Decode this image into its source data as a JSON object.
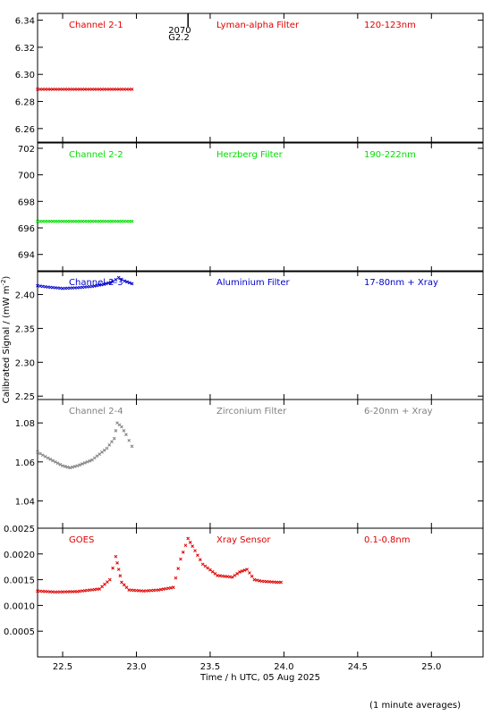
{
  "chart_data": {
    "type": "scatter",
    "ylabel": "Calibrated Signal / (mW m",
    "ylabel_sup": "-2",
    "ylabel_end": ")",
    "xlabel": "Time / h UTC, 05 Aug 2025",
    "note": "(1 minute averages)",
    "xlim": [
      22.33,
      25.35
    ],
    "xticks": [
      "22.5",
      "23.0",
      "23.5",
      "24.0",
      "24.5",
      "25.0"
    ],
    "xtick_values": [
      22.5,
      23.0,
      23.5,
      24.0,
      24.5,
      25.0
    ],
    "grid": false,
    "marker_annotation": {
      "x": 23.35,
      "lines": [
        "2070",
        "G2.2"
      ]
    },
    "panels": [
      {
        "channel": "Channel 2-1",
        "filter": "Lyman-alpha Filter",
        "band": "120-123nm",
        "color": "#e00000",
        "ylim": [
          6.25,
          6.345
        ],
        "yticks": [
          "6.26",
          "6.28",
          "6.30",
          "6.32",
          "6.34"
        ],
        "ytick_values": [
          6.26,
          6.28,
          6.3,
          6.32,
          6.34
        ],
        "x": [
          22.33,
          22.4,
          22.5,
          22.6,
          22.7,
          22.8,
          22.9,
          22.97
        ],
        "y": [
          6.289,
          6.289,
          6.289,
          6.289,
          6.289,
          6.289,
          6.289,
          6.289
        ]
      },
      {
        "channel": "Channel 2-2",
        "filter": "Herzberg Filter",
        "band": "190-222nm",
        "color": "#00dd00",
        "ylim": [
          692.7,
          702.4
        ],
        "yticks": [
          "694",
          "696",
          "698",
          "700",
          "702"
        ],
        "ytick_values": [
          694,
          696,
          698,
          700,
          702
        ],
        "x": [
          22.33,
          22.4,
          22.5,
          22.6,
          22.7,
          22.8,
          22.9,
          22.97
        ],
        "y": [
          696.5,
          696.5,
          696.5,
          696.5,
          696.5,
          696.5,
          696.5,
          696.5
        ]
      },
      {
        "channel": "Channel 2-3",
        "filter": "Aluminium Filter",
        "band": "17-80nm + Xray",
        "color": "#0000cc",
        "ylim": [
          2.245,
          2.435
        ],
        "yticks": [
          "2.25",
          "2.30",
          "2.35",
          "2.40"
        ],
        "ytick_values": [
          2.25,
          2.3,
          2.35,
          2.4
        ],
        "x": [
          22.33,
          22.4,
          22.5,
          22.6,
          22.7,
          22.78,
          22.84,
          22.88,
          22.92,
          22.97
        ],
        "y": [
          2.413,
          2.411,
          2.409,
          2.41,
          2.412,
          2.415,
          2.419,
          2.425,
          2.42,
          2.416
        ]
      },
      {
        "channel": "Channel 2-4",
        "filter": "Zirconium Filter",
        "band": "6-20nm + Xray",
        "color": "#808080",
        "ylim": [
          1.026,
          1.092
        ],
        "yticks": [
          "1.04",
          "1.06",
          "1.08"
        ],
        "ytick_values": [
          1.04,
          1.06,
          1.08
        ],
        "x": [
          22.33,
          22.4,
          22.5,
          22.55,
          22.6,
          22.7,
          22.8,
          22.85,
          22.87,
          22.9,
          22.93,
          22.97
        ],
        "y": [
          1.065,
          1.062,
          1.058,
          1.057,
          1.058,
          1.061,
          1.067,
          1.072,
          1.08,
          1.078,
          1.074,
          1.068
        ]
      },
      {
        "channel": "GOES",
        "filter": "Xray Sensor",
        "band": "0.1-0.8nm",
        "color": "#e00000",
        "ylim": [
          0.0,
          0.0025
        ],
        "yticks": [
          "0.0005",
          "0.0010",
          "0.0015",
          "0.0020",
          "0.0025"
        ],
        "ytick_values": [
          0.0005,
          0.001,
          0.0015,
          0.002,
          0.0025
        ],
        "x": [
          22.33,
          22.45,
          22.6,
          22.75,
          22.82,
          22.86,
          22.88,
          22.9,
          22.95,
          23.05,
          23.15,
          23.25,
          23.3,
          23.35,
          23.38,
          23.45,
          23.55,
          23.65,
          23.7,
          23.75,
          23.8,
          23.85,
          23.95,
          23.98
        ],
        "y": [
          0.00128,
          0.00126,
          0.00127,
          0.00132,
          0.0015,
          0.00195,
          0.0017,
          0.00145,
          0.0013,
          0.00128,
          0.0013,
          0.00135,
          0.0019,
          0.0023,
          0.00215,
          0.0018,
          0.00158,
          0.00155,
          0.00165,
          0.0017,
          0.0015,
          0.00147,
          0.00145,
          0.00145
        ]
      }
    ]
  }
}
